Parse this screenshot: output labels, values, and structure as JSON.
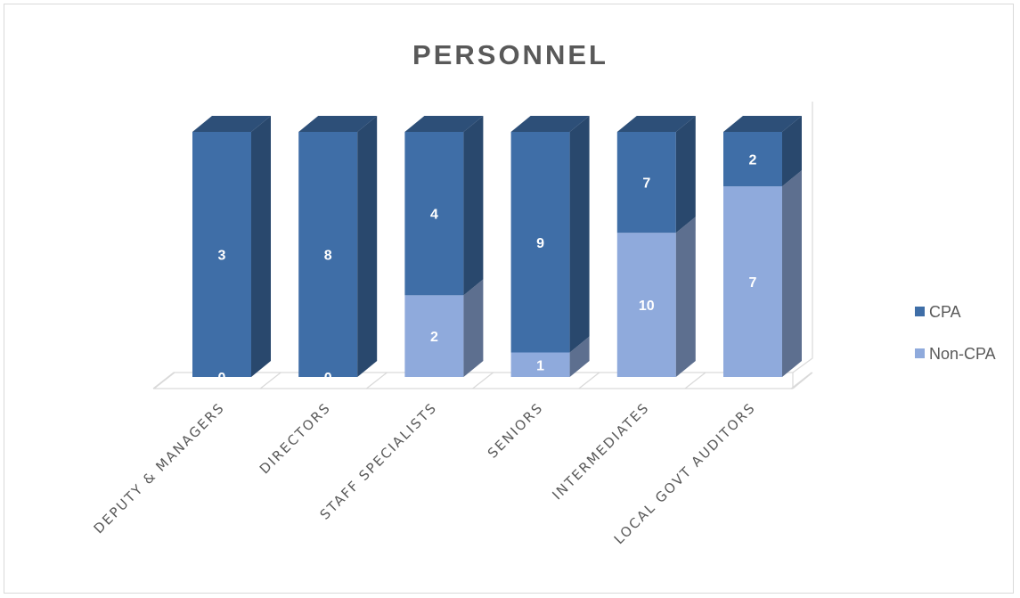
{
  "chart_data": {
    "type": "bar",
    "stacked": true,
    "three_d": true,
    "title": "PERSONNEL",
    "categories": [
      "DEPUTY & MANAGERS",
      "DIRECTORS",
      "STAFF SPECIALISTS",
      "SENIORS",
      "INTERMEDIATES",
      "LOCAL GOVT AUDITORS"
    ],
    "series": [
      {
        "name": "Non-CPA",
        "values": [
          0,
          0,
          2,
          1,
          10,
          7
        ],
        "color": "#8FAADC"
      },
      {
        "name": "CPA",
        "values": [
          3,
          8,
          4,
          9,
          7,
          2
        ],
        "color": "#3F6EA7"
      }
    ],
    "stack_mode": "100%",
    "legend": "right",
    "legend_order": [
      "CPA",
      "Non-CPA"
    ],
    "grid": false
  }
}
